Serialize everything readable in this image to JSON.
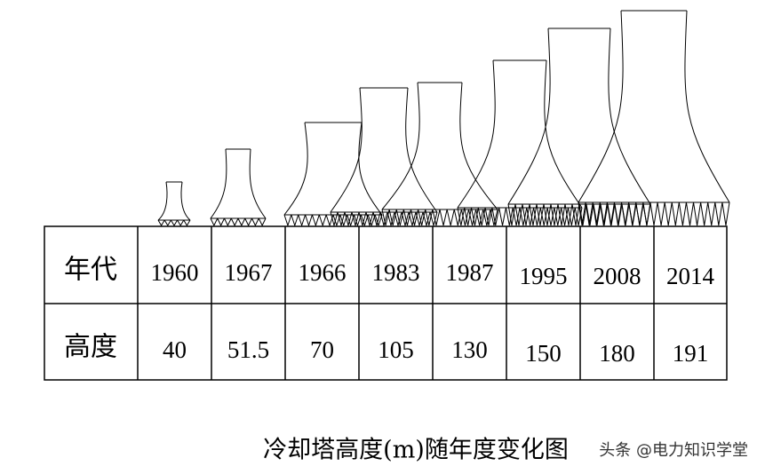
{
  "table": {
    "row_headers": [
      "年代",
      "高度"
    ],
    "rows": [
      [
        "1960",
        "1967",
        "1966",
        "1983",
        "1987",
        "1995",
        "2008",
        "2014"
      ],
      [
        "40",
        "51.5",
        "70",
        "105",
        "130",
        "150",
        "180",
        "191"
      ]
    ]
  },
  "caption": "冷却塔高度(m)随年度变化图",
  "watermark": "头条 @电力知识学堂"
}
